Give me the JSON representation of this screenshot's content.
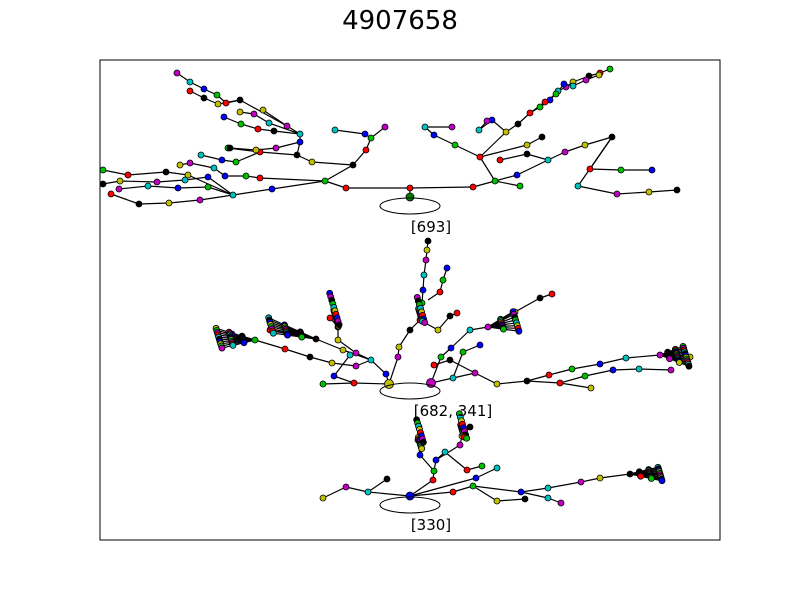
{
  "title": "4907658",
  "node_palette": [
    "#ff0000",
    "#00c000",
    "#0000ff",
    "#00c0c0",
    "#c000c0",
    "#c0c000",
    "#000000"
  ],
  "trees": [
    {
      "label": "[693]",
      "root_color": "#008000"
    },
    {
      "label": "[682, 341]",
      "root_colors": [
        "#c0c000",
        "#c000c0"
      ]
    },
    {
      "label": "[330]",
      "root_color": "#0000ff"
    }
  ]
}
